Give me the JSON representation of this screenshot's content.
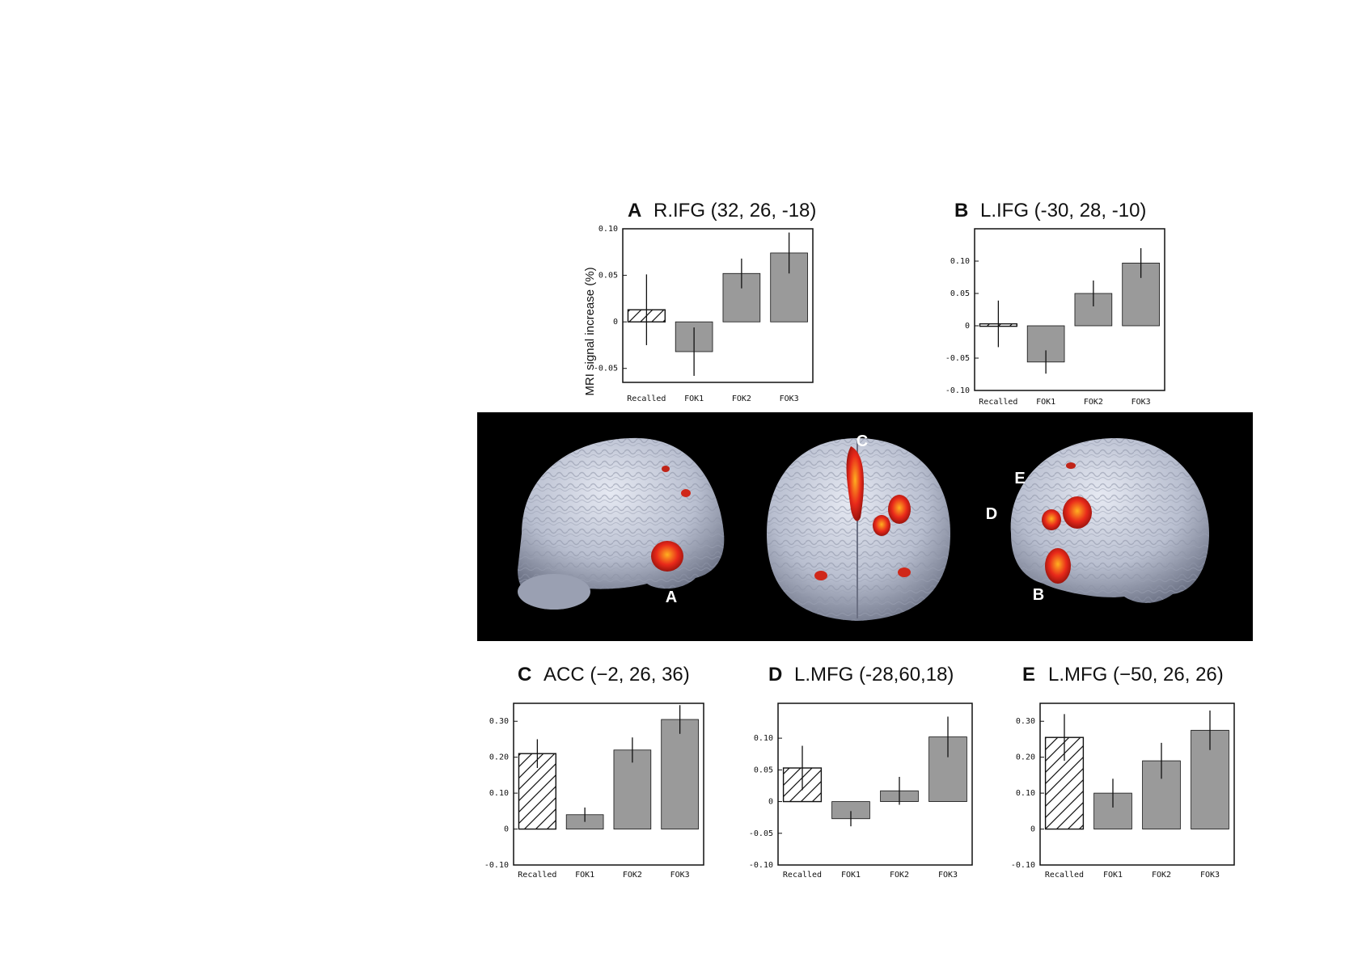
{
  "chart_data": [
    {
      "type": "bar",
      "panel_letter": "A",
      "title": "R.IFG (32, 26, -18)",
      "ylabel": "MRI signal increase (%)",
      "categories": [
        "Recalled",
        "FOK1",
        "FOK2",
        "FOK3"
      ],
      "values": [
        0.013,
        -0.032,
        0.052,
        0.074
      ],
      "errors": [
        0.038,
        0.026,
        0.016,
        0.022
      ],
      "hatched": [
        true,
        false,
        false,
        false
      ],
      "ylim": [
        -0.065,
        0.1
      ],
      "yticks": [
        0.1,
        0.05,
        0,
        -0.05
      ],
      "ytick_labels": [
        "0.10",
        "0.05",
        "0",
        "-0.05"
      ],
      "colors": {
        "bar": "#9a9a9a",
        "hatched_fill": "#ffffff",
        "edge": "#111111"
      }
    },
    {
      "type": "bar",
      "panel_letter": "B",
      "title": "L.IFG (-30, 28, -10)",
      "ylabel": "",
      "categories": [
        "Recalled",
        "FOK1",
        "FOK2",
        "FOK3"
      ],
      "values": [
        0.003,
        -0.056,
        0.05,
        0.097
      ],
      "errors": [
        0.036,
        0.018,
        0.02,
        0.023
      ],
      "hatched": [
        true,
        false,
        false,
        false
      ],
      "ylim": [
        -0.1,
        0.15
      ],
      "yticks": [
        0.1,
        0.05,
        0,
        -0.05,
        -0.1
      ],
      "ytick_labels": [
        "0.10",
        "0.05",
        "0",
        "-0.05",
        "-0.10"
      ],
      "colors": {
        "bar": "#9a9a9a",
        "hatched_fill": "#ffffff",
        "edge": "#111111"
      }
    },
    {
      "type": "bar",
      "panel_letter": "C",
      "title": "ACC (−2, 26, 36)",
      "ylabel": "",
      "categories": [
        "Recalled",
        "FOK1",
        "FOK2",
        "FOK3"
      ],
      "values": [
        0.21,
        0.04,
        0.22,
        0.305
      ],
      "errors": [
        0.04,
        0.02,
        0.035,
        0.04
      ],
      "hatched": [
        true,
        false,
        false,
        false
      ],
      "ylim": [
        -0.1,
        0.35
      ],
      "yticks": [
        0.3,
        0.2,
        0.1,
        0,
        -0.1
      ],
      "ytick_labels": [
        "0.30",
        "0.20",
        "0.10",
        "0",
        "-0.10"
      ],
      "colors": {
        "bar": "#9a9a9a",
        "hatched_fill": "#ffffff",
        "edge": "#111111"
      }
    },
    {
      "type": "bar",
      "panel_letter": "D",
      "title": "L.MFG (-28,60,18)",
      "ylabel": "",
      "categories": [
        "Recalled",
        "FOK1",
        "FOK2",
        "FOK3"
      ],
      "values": [
        0.053,
        -0.027,
        0.017,
        0.102
      ],
      "errors": [
        0.035,
        0.012,
        0.022,
        0.032
      ],
      "hatched": [
        true,
        false,
        false,
        false
      ],
      "ylim": [
        -0.1,
        0.155
      ],
      "yticks": [
        0.1,
        0.05,
        0,
        -0.05,
        -0.1
      ],
      "ytick_labels": [
        "0.10",
        "0.05",
        "0",
        "-0.05",
        "-0.10"
      ],
      "colors": {
        "bar": "#9a9a9a",
        "hatched_fill": "#ffffff",
        "edge": "#111111"
      }
    },
    {
      "type": "bar",
      "panel_letter": "E",
      "title": "L.MFG (−50, 26, 26)",
      "ylabel": "",
      "categories": [
        "Recalled",
        "FOK1",
        "FOK2",
        "FOK3"
      ],
      "values": [
        0.255,
        0.1,
        0.19,
        0.275
      ],
      "errors": [
        0.065,
        0.04,
        0.05,
        0.055
      ],
      "hatched": [
        true,
        false,
        false,
        false
      ],
      "ylim": [
        -0.1,
        0.35
      ],
      "yticks": [
        0.3,
        0.2,
        0.1,
        0,
        -0.1
      ],
      "ytick_labels": [
        "0.30",
        "0.20",
        "0.10",
        "0",
        "-0.10"
      ],
      "colors": {
        "bar": "#9a9a9a",
        "hatched_fill": "#ffffff",
        "edge": "#111111"
      }
    }
  ],
  "brain_figure": {
    "labels": [
      "A",
      "C",
      "E",
      "D",
      "B"
    ],
    "colors": {
      "background": "#000000",
      "brain": "#b9bfd0",
      "activation": "#e8291a",
      "activation_core": "#ffb020"
    }
  }
}
